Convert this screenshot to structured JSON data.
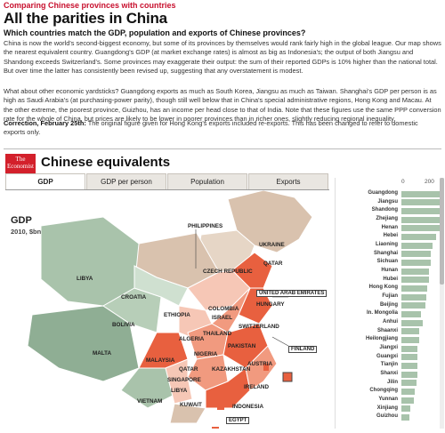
{
  "kicker": "Comparing Chinese provinces with countries",
  "headline": "All the parities in China",
  "subhead": "Which countries match the GDP, population and exports of Chinese provinces?",
  "paragraphs": [
    "China is now the world's second-biggest economy, but some of its provinces by themselves would rank fairly high in the global league. Our map shows the nearest equivalent country. Guangdong's GDP (at market exchange rates) is almost as big as Indonesia's; the output of both Jiangsu and Shandong exceeds Switzerland's. Some provinces may exaggerate their output: the sum of their reported GDPs is 10% higher than the national total. But over time the latter has consistently been revised up, suggesting that any overstatement is modest.",
    "What about other economic yardsticks? Guangdong exports as much as South Korea, Jiangsu as much as Taiwan. Shanghai's GDP per person is as high as Saudi Arabia's (at purchasing-power parity), though still well below that in China's special administrative regions, Hong Kong and Macau. At the other extreme, the poorest province, Guizhou, has an income per head close to that of India. Note that these figures use the same PPP conversion rate for the whole of China, but prices are likely to be lower in poorer provinces than in richer ones, slightly reducing regional inequality."
  ],
  "correction": {
    "label": "Correction, February 25th:",
    "text": " The original figure given for Hong Kong's exports included re-exports. This has been changed to refer to domestic exports only."
  },
  "infographic": {
    "logo": "The Economist",
    "title": "Chinese equivalents",
    "tabs": [
      "GDP",
      "GDP per person",
      "Population",
      "Exports"
    ],
    "active_tab": "GDP",
    "map_title": "GDP",
    "map_subtitle": "2010, $bn",
    "map_labels": [
      "UKRAINE",
      "PHILIPPINES",
      "QATAR",
      "CZECH REPUBLIC",
      "LIBYA",
      "UNITED ARAB EMIRATES",
      "CROATIA",
      "HUNGARY",
      "COLOMBIA",
      "ETHIOPIA",
      "ISRAEL",
      "BOLIVIA",
      "SWITZERLAND",
      "THAILAND",
      "ALGERIA",
      "MALTA",
      "PAKISTAN",
      "FINLAND",
      "MALAYSIA",
      "NIGERIA",
      "QATAR",
      "AUSTRIA",
      "KAZAKHSTAN",
      "SINGAPORE",
      "LIBYA",
      "IRELAND",
      "VIETNAM",
      "KUWAIT",
      "INDONESIA",
      "EGYPT"
    ],
    "colors": {
      "deep": "#e8603f",
      "mid": "#f19a7f",
      "light": "#f6c7b6",
      "tan": "#d9c2ae",
      "green": "#a9c3ab",
      "greenDark": "#8fae94"
    },
    "axis_ticks": [
      "0",
      "200"
    ],
    "provinces": [
      {
        "name": "Guangdong",
        "value": 690
      },
      {
        "name": "Jiangsu",
        "value": 609
      },
      {
        "name": "Shandong",
        "value": 582
      },
      {
        "name": "Zhejiang",
        "value": 408
      },
      {
        "name": "Henan",
        "value": 343
      },
      {
        "name": "Hebei",
        "value": 301
      },
      {
        "name": "Liaoning",
        "value": 273
      },
      {
        "name": "Shanghai",
        "value": 254
      },
      {
        "name": "Sichuan",
        "value": 254
      },
      {
        "name": "Hunan",
        "value": 238
      },
      {
        "name": "Hubei",
        "value": 236
      },
      {
        "name": "Hong Kong",
        "value": 225
      },
      {
        "name": "Fujian",
        "value": 217
      },
      {
        "name": "Beijing",
        "value": 208
      },
      {
        "name": "In. Mongolia",
        "value": 173
      },
      {
        "name": "Anhui",
        "value": 182
      },
      {
        "name": "Shaanxi",
        "value": 150
      },
      {
        "name": "Heilongjiang",
        "value": 154
      },
      {
        "name": "Jiangxi",
        "value": 140
      },
      {
        "name": "Guangxi",
        "value": 141
      },
      {
        "name": "Tianjin",
        "value": 136
      },
      {
        "name": "Shanxi",
        "value": 135
      },
      {
        "name": "Jilin",
        "value": 128
      },
      {
        "name": "Chongqing",
        "value": 117
      },
      {
        "name": "Yunnan",
        "value": 107
      },
      {
        "name": "Xinjiang",
        "value": 80
      },
      {
        "name": "Guizhou",
        "value": 68
      }
    ]
  }
}
